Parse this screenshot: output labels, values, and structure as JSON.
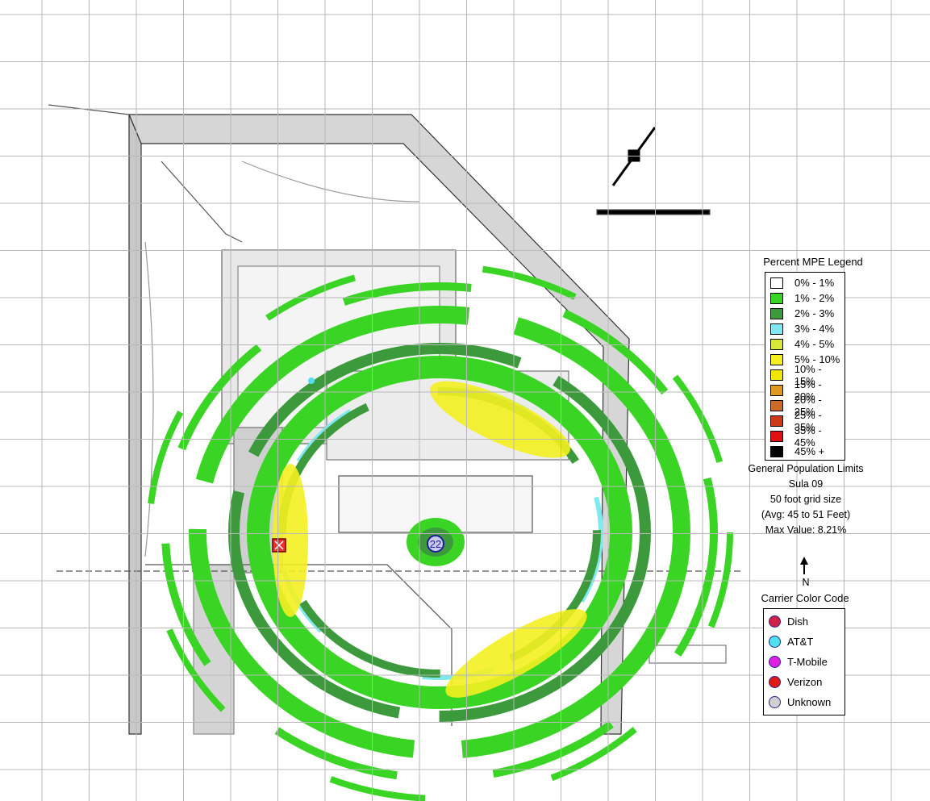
{
  "legend": {
    "title": "Percent MPE Legend",
    "items": [
      {
        "label": "0% - 1%",
        "color": "#ffffff"
      },
      {
        "label": "1% - 2%",
        "color": "#39d424"
      },
      {
        "label": "2% - 3%",
        "color": "#3c9a3c"
      },
      {
        "label": "3% - 4%",
        "color": "#80e8f0"
      },
      {
        "label": "4% - 5%",
        "color": "#d8e838"
      },
      {
        "label": "5% - 10%",
        "color": "#f4f020"
      },
      {
        "label": "10% - 15%",
        "color": "#f2e600"
      },
      {
        "label": "15% - 20%",
        "color": "#e09820"
      },
      {
        "label": "20% - 25%",
        "color": "#cc6a28"
      },
      {
        "label": "25% - 35%",
        "color": "#cc3a18"
      },
      {
        "label": "35% - 45%",
        "color": "#e01010"
      },
      {
        "label": "45% +",
        "color": "#000000"
      }
    ]
  },
  "info": {
    "limits": "General Population Limits",
    "site": "Sula 09",
    "grid": "50 foot grid size",
    "avg": "(Avg: 45 to 51 Feet)",
    "max": "Max Value: 8.21%"
  },
  "north_label": "N",
  "carrier": {
    "title": "Carrier Color Code",
    "items": [
      {
        "label": "Dish",
        "color": "#d0204a"
      },
      {
        "label": "AT&T",
        "color": "#50e0f0"
      },
      {
        "label": "T-Mobile",
        "color": "#e020e0"
      },
      {
        "label": "Verizon",
        "color": "#e01818"
      },
      {
        "label": "Unknown",
        "color": "#d0d0d0"
      }
    ]
  },
  "site_marker": "22"
}
